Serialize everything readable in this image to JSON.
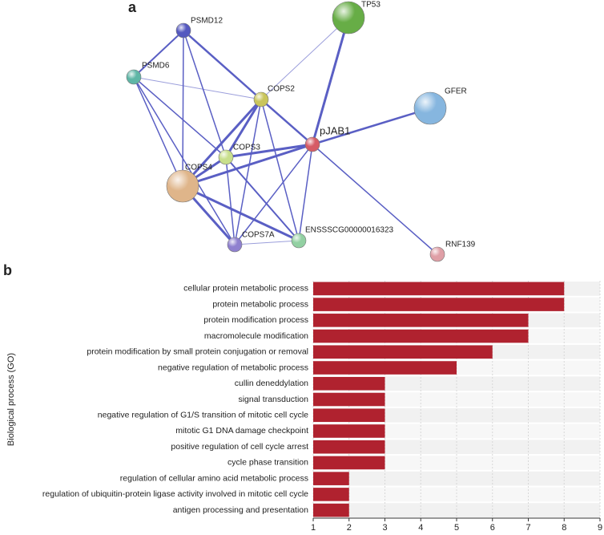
{
  "network": {
    "label": "a",
    "nodes": [
      "PSMD12",
      "PSMD6",
      "TP53",
      "COPS2",
      "GFER",
      "pJAB1",
      "COPS3",
      "COPS4",
      "COPS7A",
      "ENSSSCG00000016323",
      "RNF139"
    ]
  },
  "panel_b": {
    "label": "b"
  },
  "chart_data": {
    "type": "bar",
    "orientation": "horizontal",
    "ylabel": "Biological process (GO)",
    "categories": [
      "cellular protein metabolic process",
      "protein metabolic process",
      "protein modification process",
      "macromolecule modification",
      "protein modification by small protein conjugation or removal",
      "negative regulation of metabolic process",
      "cullin deneddylation",
      "signal transduction",
      "negative regulation of G1/S transition of mitotic cell cycle",
      "mitotic G1 DNA damage checkpoint",
      "positive regulation of cell cycle arrest",
      "cycle phase transition",
      "regulation of cellular amino acid metabolic process",
      "regulation of ubiquitin-protein ligase activity involved in mitotic cell cycle",
      "antigen processing and presentation"
    ],
    "values": [
      8,
      8,
      7,
      7,
      6,
      5,
      3,
      3,
      3,
      3,
      3,
      3,
      2,
      2,
      2
    ],
    "color": "#b0222f",
    "xlim": [
      1,
      9
    ],
    "xticks": [
      1,
      2,
      3,
      4,
      5,
      6,
      7,
      8,
      9
    ],
    "grid": true
  }
}
